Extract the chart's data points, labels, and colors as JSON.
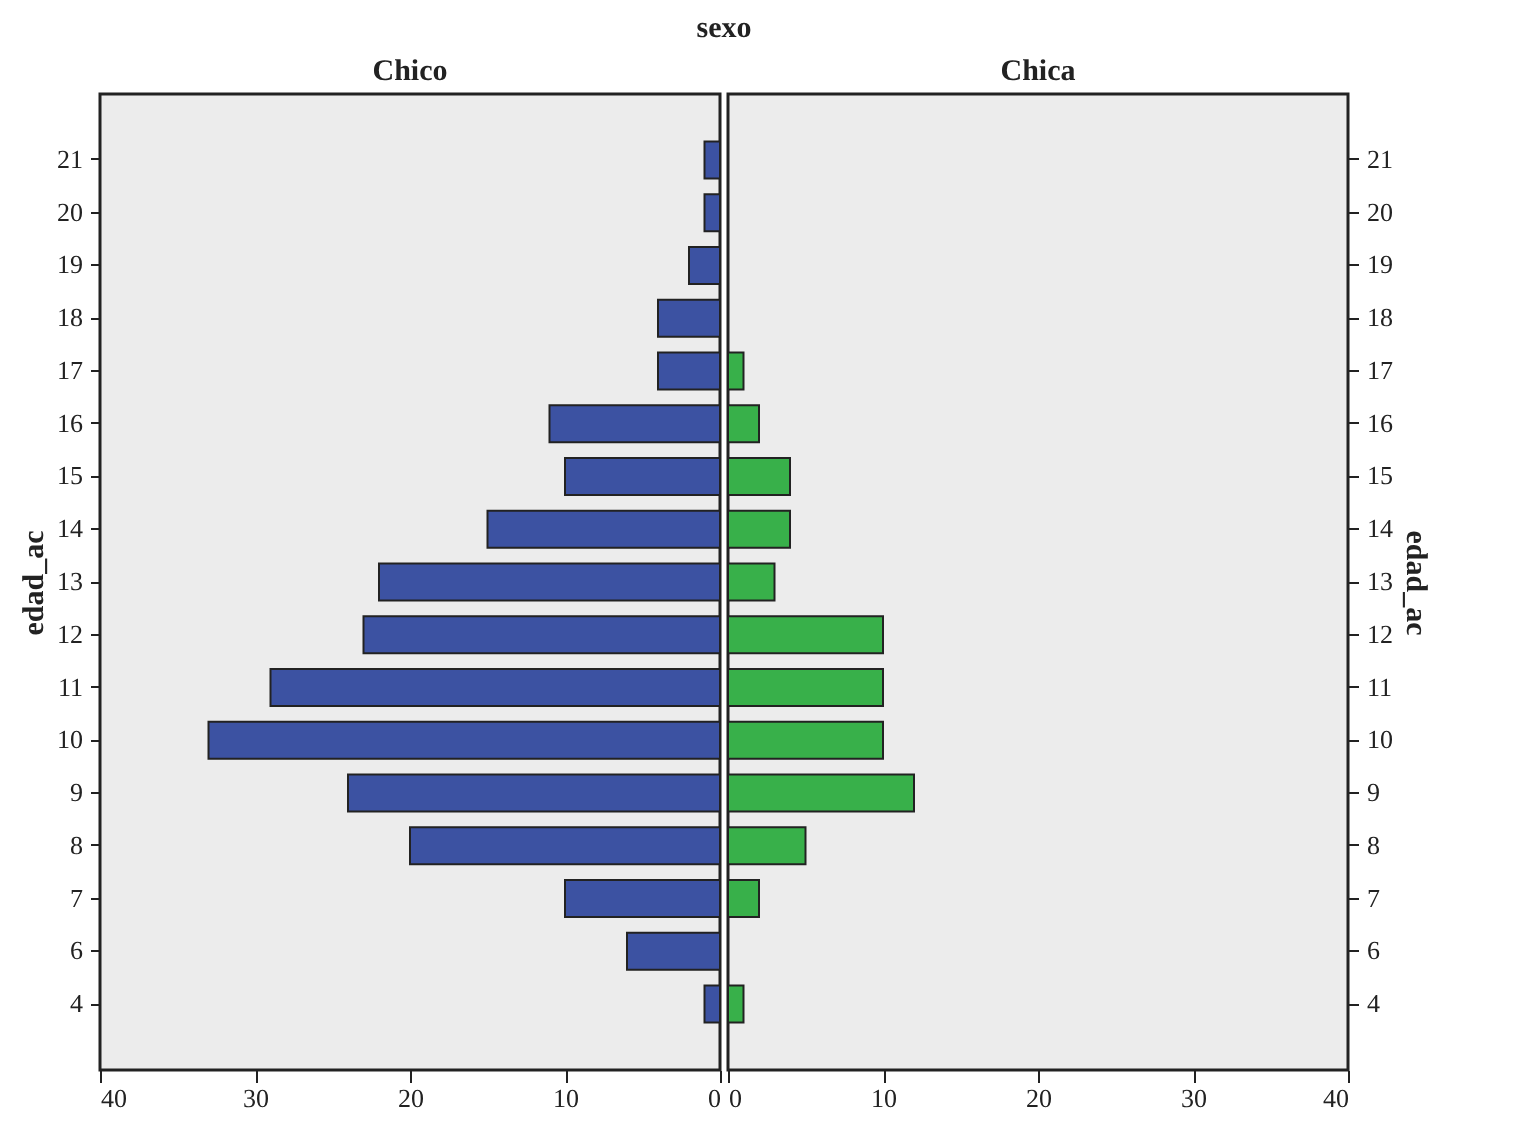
{
  "chart_data": [
    {
      "type": "bar",
      "orientation": "horizontal",
      "title": "Chico",
      "annotations": [
        "sexo"
      ],
      "ylabel": "edad_ac",
      "xlabel": null,
      "categories": [
        "21",
        "20",
        "19",
        "18",
        "17",
        "16",
        "15",
        "14",
        "13",
        "12",
        "11",
        "10",
        "9",
        "8",
        "7",
        "6",
        "4"
      ],
      "values": [
        1,
        1,
        2,
        4,
        4,
        11,
        10,
        15,
        22,
        23,
        29,
        33,
        24,
        20,
        10,
        6,
        1
      ],
      "color": "#3c52a2",
      "xlim": [
        40,
        0
      ],
      "xticks": [
        40,
        30,
        20,
        10,
        0
      ]
    },
    {
      "type": "bar",
      "orientation": "horizontal",
      "title": "Chica",
      "ylabel": "edad_ac",
      "categories": [
        "21",
        "20",
        "19",
        "18",
        "17",
        "16",
        "15",
        "14",
        "13",
        "12",
        "11",
        "10",
        "9",
        "8",
        "7",
        "6",
        "4"
      ],
      "values": [
        null,
        null,
        null,
        null,
        1,
        2,
        4,
        4,
        3,
        10,
        10,
        10,
        12,
        5,
        2,
        null,
        1
      ],
      "color": "#38b04a",
      "xlim": [
        0,
        40
      ],
      "xticks": [
        0,
        10,
        20,
        30,
        40
      ]
    }
  ]
}
